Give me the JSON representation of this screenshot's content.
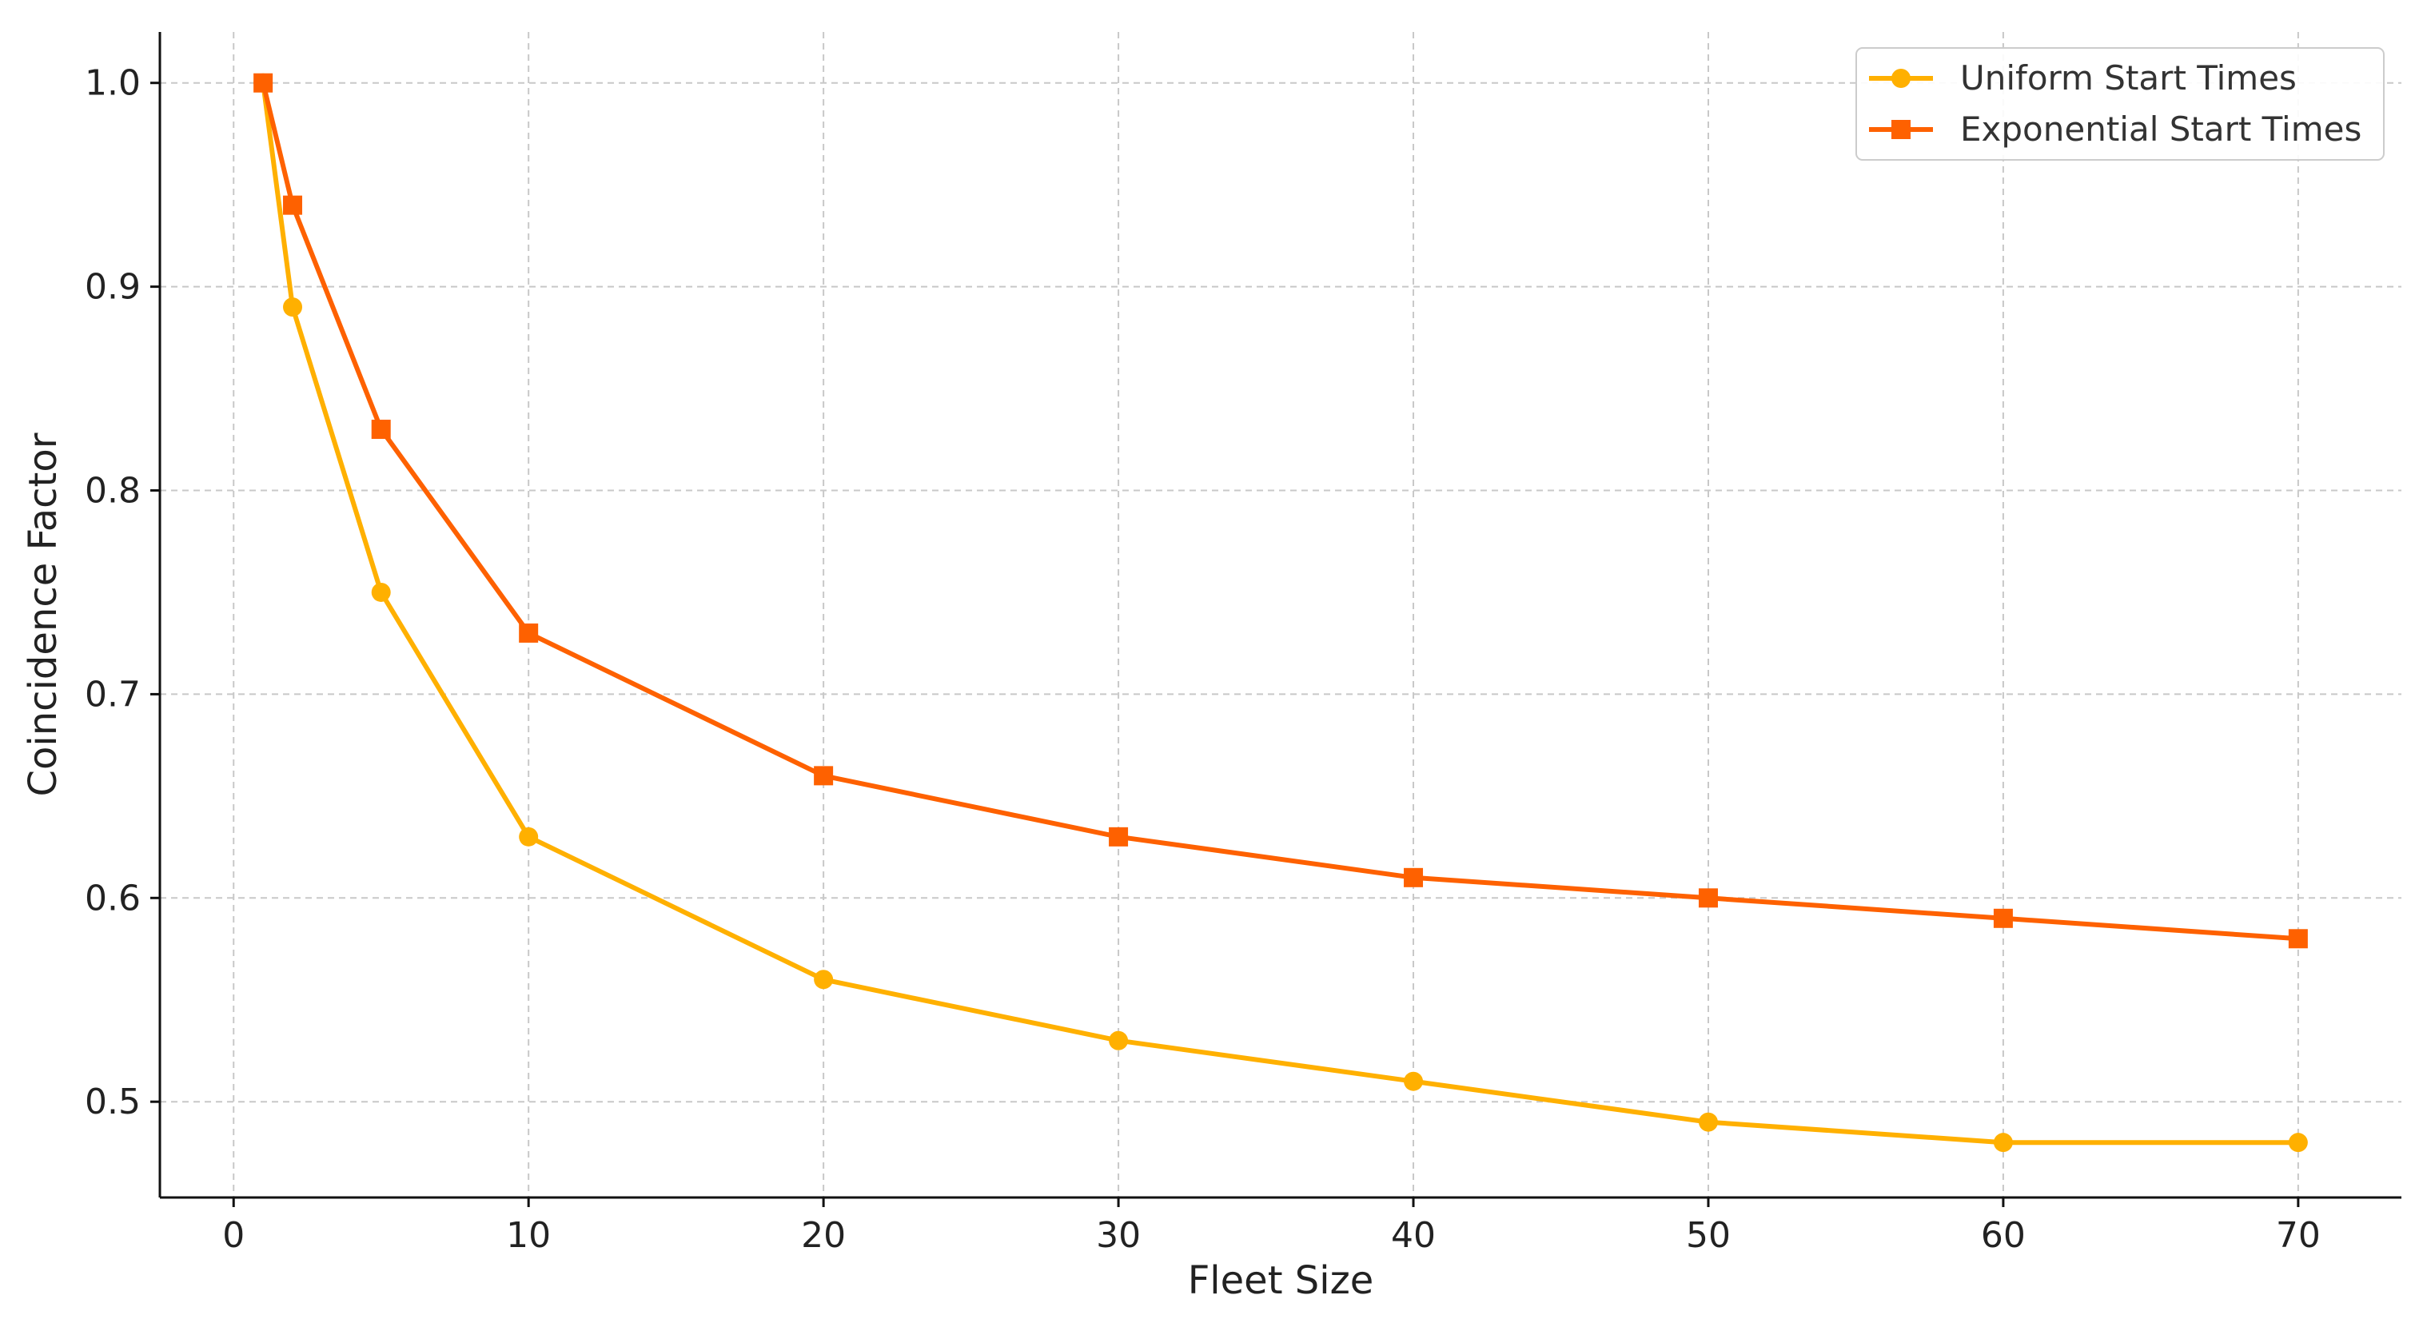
{
  "chart_data": {
    "type": "line",
    "title": "",
    "xlabel": "Fleet Size",
    "ylabel": "Coincidence Factor",
    "xlim": [
      -2.5,
      73.5
    ],
    "ylim": [
      0.453,
      1.025
    ],
    "x_ticks": [
      0,
      10,
      20,
      30,
      40,
      50,
      60,
      70
    ],
    "x_tick_labels": [
      "0",
      "10",
      "20",
      "30",
      "40",
      "50",
      "60",
      "70"
    ],
    "y_ticks": [
      0.5,
      0.6,
      0.7,
      0.8,
      0.9,
      1.0
    ],
    "y_tick_labels": [
      "0.5",
      "0.6",
      "0.7",
      "0.8",
      "0.9",
      "1.0"
    ],
    "grid": true,
    "legend_position": "top-right",
    "x": [
      1,
      2,
      5,
      10,
      20,
      30,
      40,
      50,
      60,
      70
    ],
    "series": [
      {
        "name": "Uniform Start Times",
        "marker": "circle",
        "color": "#FFB000",
        "values": [
          1.0,
          0.89,
          0.75,
          0.63,
          0.56,
          0.53,
          0.51,
          0.49,
          0.48,
          0.48
        ]
      },
      {
        "name": "Exponential Start Times",
        "marker": "square",
        "color": "#FE6100",
        "values": [
          1.0,
          0.94,
          0.83,
          0.73,
          0.66,
          0.63,
          0.61,
          0.6,
          0.59,
          0.58
        ]
      }
    ]
  }
}
